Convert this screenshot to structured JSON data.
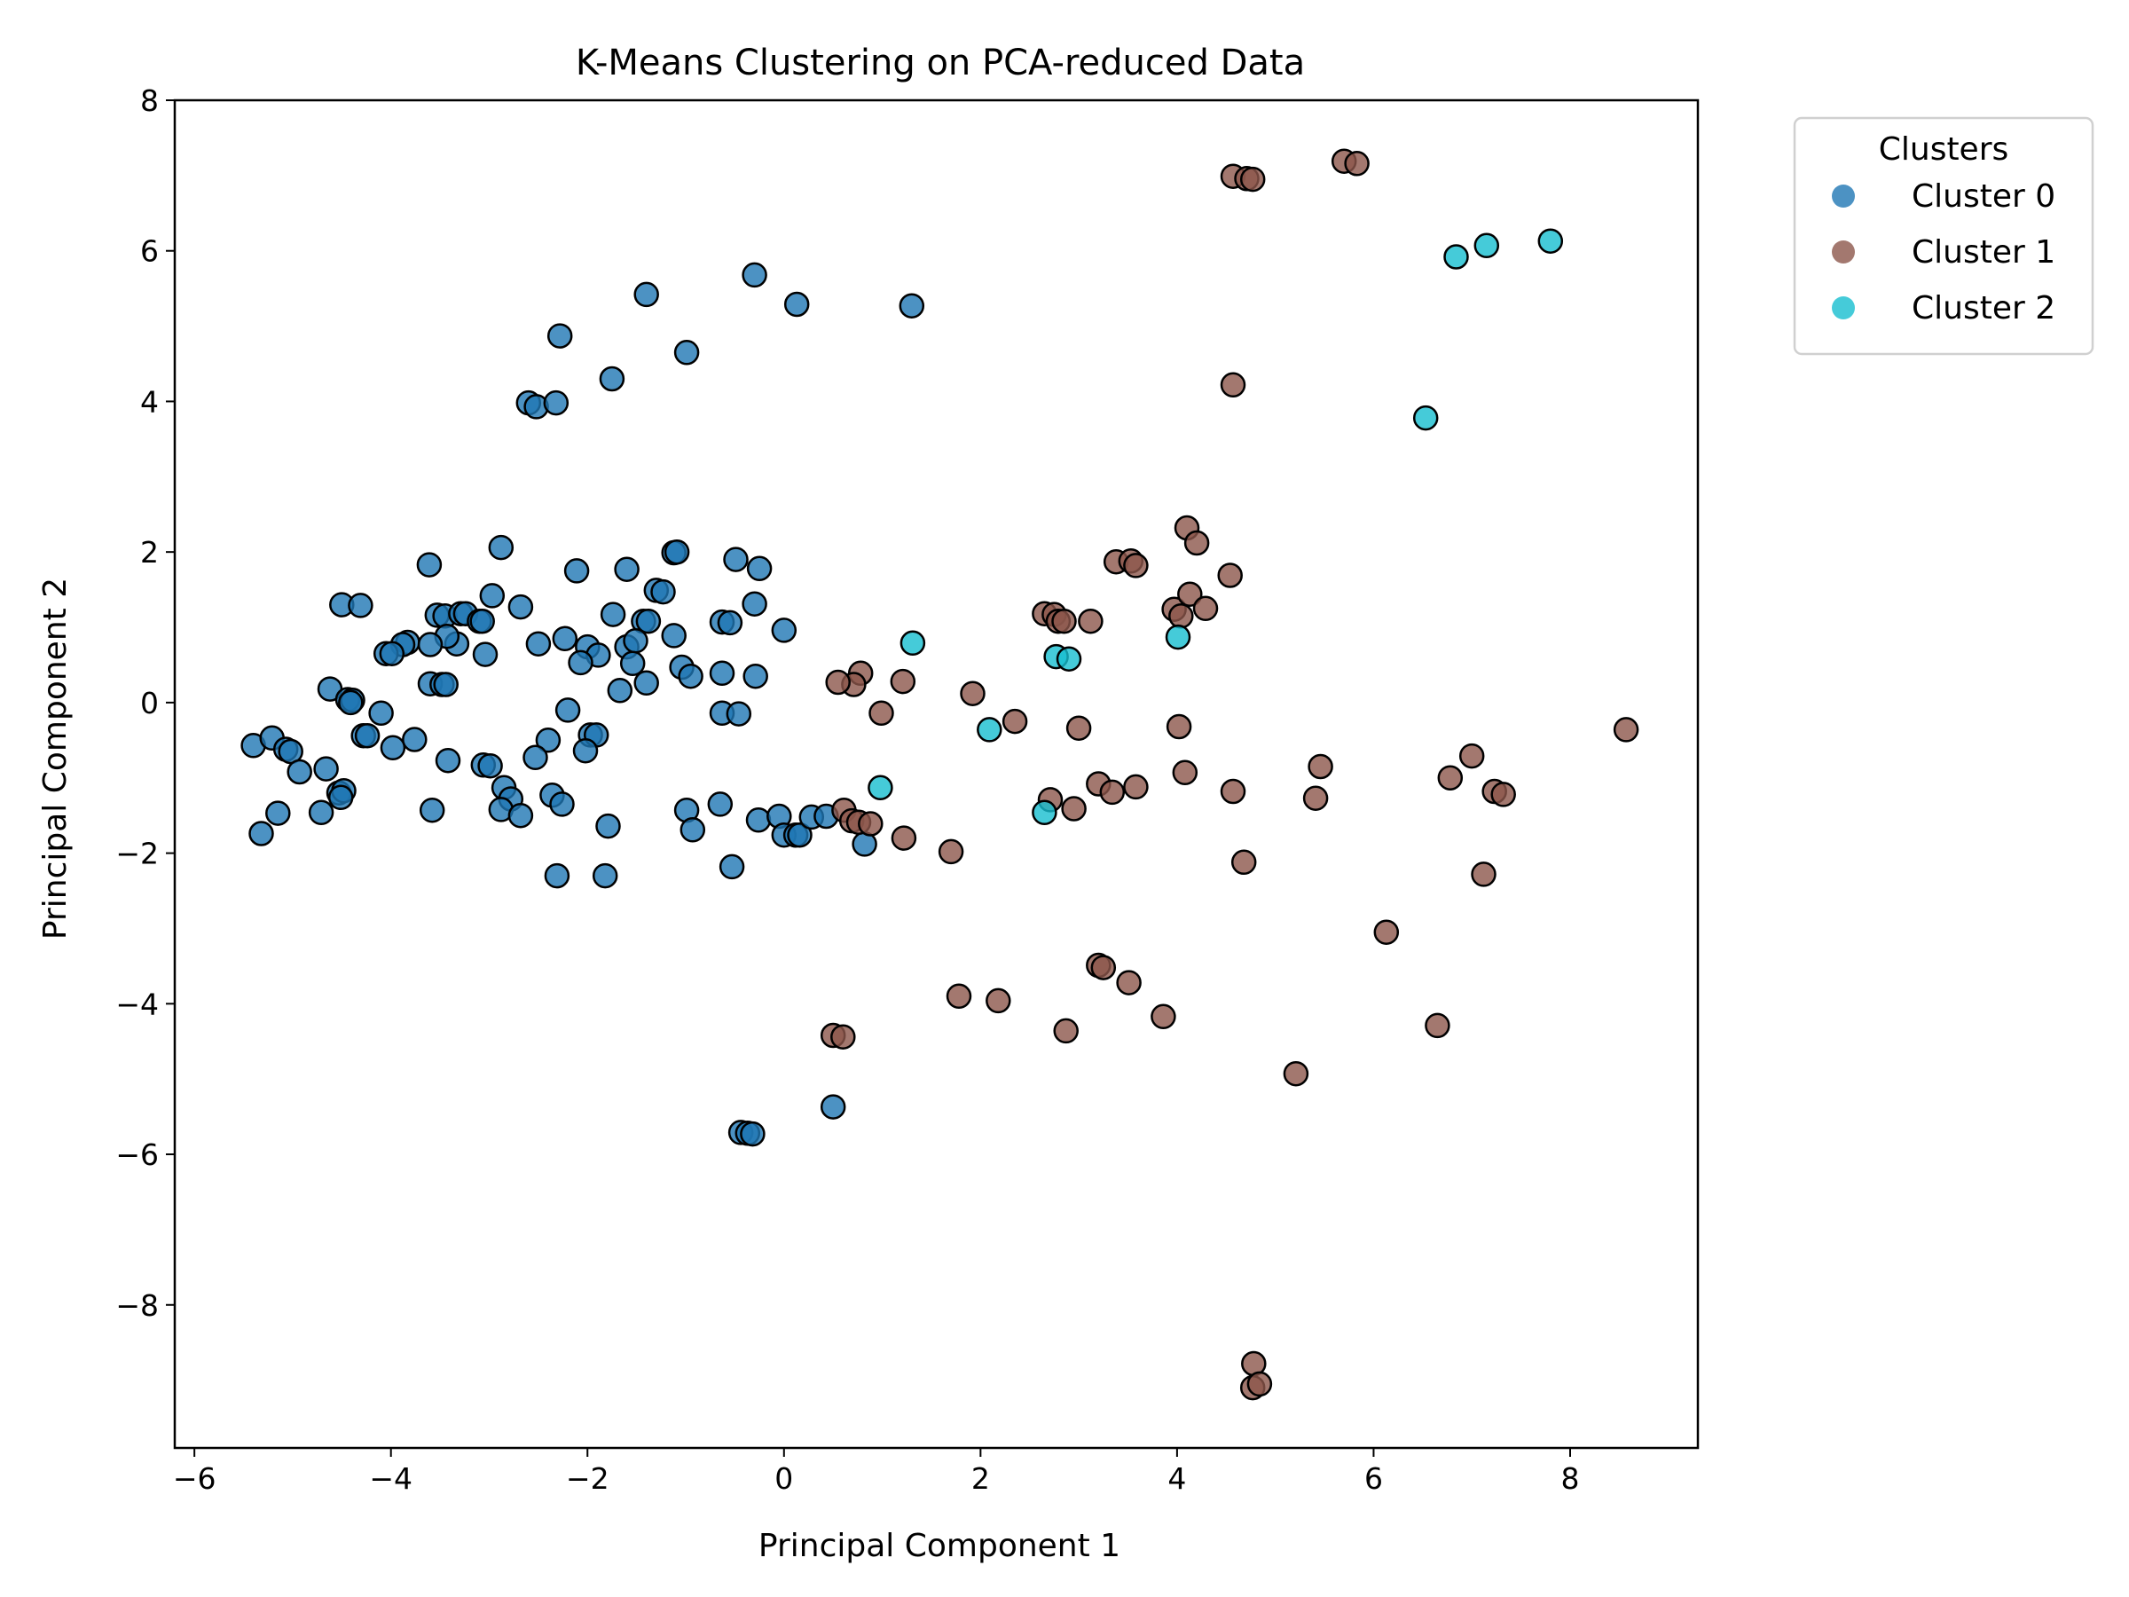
{
  "chart_data": {
    "type": "scatter",
    "title": "K-Means Clustering on PCA-reduced Data",
    "xlabel": "Principal Component 1",
    "ylabel": "Principal Component 2",
    "xlim": [
      -6.2,
      9.3
    ],
    "ylim": [
      -9.9,
      8.0
    ],
    "xticks": [
      -6,
      -4,
      -2,
      0,
      2,
      4,
      6,
      8
    ],
    "yticks": [
      -8,
      -6,
      -4,
      -2,
      0,
      2,
      4,
      6,
      8
    ],
    "xtick_labels": [
      "−6",
      "−4",
      "−2",
      "0",
      "2",
      "4",
      "6",
      "8"
    ],
    "ytick_labels": [
      "−8",
      "−6",
      "−4",
      "−2",
      "0",
      "2",
      "4",
      "6",
      "8"
    ],
    "grid": false,
    "legend": {
      "title": "Clusters",
      "placement": "outside-top-right"
    },
    "series": [
      {
        "name": "Cluster 0",
        "color": "#1f77b4",
        "points": [
          [
            -1.4,
            5.42
          ],
          [
            -0.3,
            5.68
          ],
          [
            0.13,
            5.29
          ],
          [
            1.3,
            5.27
          ],
          [
            -2.28,
            4.87
          ],
          [
            -0.99,
            4.65
          ],
          [
            -1.75,
            4.3
          ],
          [
            -2.6,
            3.98
          ],
          [
            -2.52,
            3.93
          ],
          [
            -2.32,
            3.98
          ],
          [
            -2.88,
            2.06
          ],
          [
            -3.61,
            1.83
          ],
          [
            -2.11,
            1.75
          ],
          [
            -1.6,
            1.77
          ],
          [
            -1.12,
            1.99
          ],
          [
            -1.09,
            2.0
          ],
          [
            -0.49,
            1.9
          ],
          [
            -0.25,
            1.78
          ],
          [
            -4.5,
            1.3
          ],
          [
            -4.31,
            1.29
          ],
          [
            -2.97,
            1.42
          ],
          [
            -2.68,
            1.27
          ],
          [
            -1.3,
            1.49
          ],
          [
            -1.23,
            1.47
          ],
          [
            -0.3,
            1.31
          ],
          [
            -1.74,
            1.17
          ],
          [
            -1.43,
            1.08
          ],
          [
            -1.38,
            1.08
          ],
          [
            -0.63,
            1.07
          ],
          [
            -0.55,
            1.06
          ],
          [
            0.0,
            0.96
          ],
          [
            -3.53,
            1.16
          ],
          [
            -3.45,
            1.15
          ],
          [
            -3.29,
            1.18
          ],
          [
            -3.24,
            1.18
          ],
          [
            -3.1,
            1.08
          ],
          [
            -3.07,
            1.08
          ],
          [
            -3.33,
            0.78
          ],
          [
            -3.43,
            0.88
          ],
          [
            -3.83,
            0.8
          ],
          [
            -3.88,
            0.77
          ],
          [
            -3.6,
            0.77
          ],
          [
            -2.5,
            0.78
          ],
          [
            -2.23,
            0.85
          ],
          [
            -2.0,
            0.74
          ],
          [
            -1.89,
            0.63
          ],
          [
            -1.6,
            0.74
          ],
          [
            -1.51,
            0.82
          ],
          [
            -1.12,
            0.89
          ],
          [
            -4.05,
            0.65
          ],
          [
            -3.99,
            0.65
          ],
          [
            -3.04,
            0.64
          ],
          [
            -2.07,
            0.53
          ],
          [
            -1.54,
            0.52
          ],
          [
            -1.04,
            0.47
          ],
          [
            -1.4,
            0.26
          ],
          [
            -0.95,
            0.35
          ],
          [
            -0.63,
            0.39
          ],
          [
            -0.29,
            0.35
          ],
          [
            -3.6,
            0.25
          ],
          [
            -3.48,
            0.24
          ],
          [
            -3.44,
            0.24
          ],
          [
            -1.67,
            0.16
          ],
          [
            -4.62,
            0.18
          ],
          [
            -4.44,
            0.04
          ],
          [
            -4.39,
            0.03
          ],
          [
            -4.41,
            0.0
          ],
          [
            -4.1,
            -0.14
          ],
          [
            -2.2,
            -0.1
          ],
          [
            -0.63,
            -0.14
          ],
          [
            -0.46,
            -0.15
          ],
          [
            -4.28,
            -0.44
          ],
          [
            -4.24,
            -0.44
          ],
          [
            -3.76,
            -0.49
          ],
          [
            -3.98,
            -0.6
          ],
          [
            -2.4,
            -0.5
          ],
          [
            -1.97,
            -0.43
          ],
          [
            -1.91,
            -0.43
          ],
          [
            -2.02,
            -0.64
          ],
          [
            -2.53,
            -0.73
          ],
          [
            -3.42,
            -0.77
          ],
          [
            -3.06,
            -0.83
          ],
          [
            -2.99,
            -0.84
          ],
          [
            -5.4,
            -0.57
          ],
          [
            -5.21,
            -0.47
          ],
          [
            -5.07,
            -0.62
          ],
          [
            -5.02,
            -0.65
          ],
          [
            -4.93,
            -0.92
          ],
          [
            -4.66,
            -0.88
          ],
          [
            -4.53,
            -1.2
          ],
          [
            -4.48,
            -1.17
          ],
          [
            -4.51,
            -1.26
          ],
          [
            -2.85,
            -1.13
          ],
          [
            -2.78,
            -1.28
          ],
          [
            -2.36,
            -1.23
          ],
          [
            -2.26,
            -1.35
          ],
          [
            -5.32,
            -1.74
          ],
          [
            -5.15,
            -1.47
          ],
          [
            -4.71,
            -1.46
          ],
          [
            -3.58,
            -1.43
          ],
          [
            -2.88,
            -1.42
          ],
          [
            -2.68,
            -1.5
          ],
          [
            -1.79,
            -1.64
          ],
          [
            -0.99,
            -1.43
          ],
          [
            -0.93,
            -1.69
          ],
          [
            -0.65,
            -1.35
          ],
          [
            -0.26,
            -1.56
          ],
          [
            -0.05,
            -1.51
          ],
          [
            0.0,
            -1.76
          ],
          [
            0.12,
            -1.76
          ],
          [
            0.16,
            -1.76
          ],
          [
            0.28,
            -1.52
          ],
          [
            0.43,
            -1.51
          ],
          [
            0.82,
            -1.88
          ],
          [
            -2.31,
            -2.3
          ],
          [
            -1.82,
            -2.3
          ],
          [
            -0.53,
            -2.18
          ],
          [
            0.5,
            -5.37
          ],
          [
            -0.44,
            -5.71
          ],
          [
            -0.37,
            -5.72
          ],
          [
            -0.32,
            -5.73
          ]
        ]
      },
      {
        "name": "Cluster 1",
        "color": "#8c564b",
        "points": [
          [
            4.57,
            6.99
          ],
          [
            4.71,
            6.96
          ],
          [
            4.77,
            6.95
          ],
          [
            5.7,
            7.19
          ],
          [
            5.83,
            7.16
          ],
          [
            4.57,
            4.22
          ],
          [
            4.1,
            2.32
          ],
          [
            4.2,
            2.12
          ],
          [
            3.38,
            1.87
          ],
          [
            3.53,
            1.88
          ],
          [
            3.58,
            1.82
          ],
          [
            4.54,
            1.69
          ],
          [
            3.97,
            1.24
          ],
          [
            4.04,
            1.15
          ],
          [
            4.13,
            1.44
          ],
          [
            4.29,
            1.25
          ],
          [
            2.65,
            1.18
          ],
          [
            2.75,
            1.17
          ],
          [
            2.79,
            1.08
          ],
          [
            2.85,
            1.08
          ],
          [
            3.12,
            1.08
          ],
          [
            0.78,
            0.39
          ],
          [
            0.71,
            0.24
          ],
          [
            0.55,
            0.27
          ],
          [
            1.21,
            0.28
          ],
          [
            1.92,
            0.12
          ],
          [
            0.99,
            -0.14
          ],
          [
            2.35,
            -0.25
          ],
          [
            3.0,
            -0.34
          ],
          [
            4.02,
            -0.32
          ],
          [
            8.57,
            -0.36
          ],
          [
            4.08,
            -0.93
          ],
          [
            5.46,
            -0.85
          ],
          [
            7.0,
            -0.71
          ],
          [
            6.78,
            -1.0
          ],
          [
            3.2,
            -1.08
          ],
          [
            3.58,
            -1.12
          ],
          [
            3.34,
            -1.19
          ],
          [
            4.57,
            -1.18
          ],
          [
            5.41,
            -1.27
          ],
          [
            7.23,
            -1.18
          ],
          [
            7.32,
            -1.22
          ],
          [
            2.71,
            -1.29
          ],
          [
            2.95,
            -1.41
          ],
          [
            0.61,
            -1.43
          ],
          [
            0.69,
            -1.57
          ],
          [
            0.76,
            -1.59
          ],
          [
            0.88,
            -1.61
          ],
          [
            1.22,
            -1.8
          ],
          [
            1.7,
            -1.98
          ],
          [
            4.68,
            -2.12
          ],
          [
            7.12,
            -2.28
          ],
          [
            6.13,
            -3.05
          ],
          [
            3.2,
            -3.49
          ],
          [
            3.25,
            -3.52
          ],
          [
            3.51,
            -3.72
          ],
          [
            1.78,
            -3.9
          ],
          [
            2.18,
            -3.96
          ],
          [
            3.86,
            -4.17
          ],
          [
            2.87,
            -4.36
          ],
          [
            0.5,
            -4.42
          ],
          [
            0.6,
            -4.44
          ],
          [
            6.65,
            -4.29
          ],
          [
            5.21,
            -4.93
          ],
          [
            4.78,
            -8.78
          ],
          [
            4.77,
            -9.1
          ],
          [
            4.84,
            -9.05
          ]
        ]
      },
      {
        "name": "Cluster 2",
        "color": "#17becf",
        "points": [
          [
            7.8,
            6.13
          ],
          [
            7.15,
            6.07
          ],
          [
            6.84,
            5.92
          ],
          [
            6.53,
            3.78
          ],
          [
            1.31,
            0.79
          ],
          [
            4.01,
            0.87
          ],
          [
            2.77,
            0.61
          ],
          [
            2.9,
            0.58
          ],
          [
            2.09,
            -0.36
          ],
          [
            0.98,
            -1.13
          ],
          [
            2.65,
            -1.46
          ]
        ]
      }
    ]
  }
}
